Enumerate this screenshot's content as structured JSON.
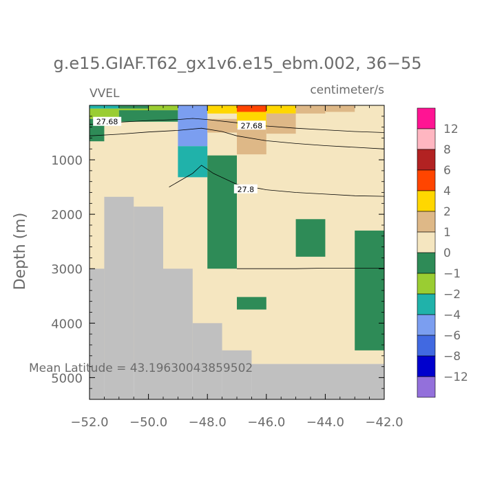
{
  "chart_data": {
    "type": "heatmap",
    "title": "g.e15.GIAF.T62_gx1v6.e15_ebm.002, 36−55",
    "variable_label": "VVEL",
    "units_label": "centimeter/s",
    "ylabel": "Depth (m)",
    "xlabel": "",
    "xlim": [
      -52.0,
      -42.0
    ],
    "ylim": [
      5400,
      0
    ],
    "x_ticks": [
      -52,
      -50,
      -48,
      -46,
      -44,
      -42
    ],
    "x_tick_labels": [
      "−52.0",
      "−50.0",
      "−48.0",
      "−46.0",
      "−44.0",
      "−42.0"
    ],
    "y_ticks": [
      1000,
      2000,
      3000,
      4000,
      5000
    ],
    "y_tick_labels": [
      "1000",
      "2000",
      "3000",
      "4000",
      "5000"
    ],
    "annotation": "Mean Latitude = 43.19630043859502",
    "colorbar": {
      "levels": [
        "12",
        "8",
        "6",
        "4",
        "2",
        "1",
        "0",
        "−1",
        "−2",
        "−4",
        "−6",
        "−8",
        "−12"
      ],
      "colors": [
        "#ff1493",
        "#ffb6c1",
        "#b22222",
        "#ff4500",
        "#ffd700",
        "#deb887",
        "#f5e6c0",
        "#2e8b57",
        "#9acd32",
        "#20b2aa",
        "#7b9ef0",
        "#4169e1",
        "#0000cd",
        "#9370db"
      ]
    },
    "cells": [
      {
        "x0": -52,
        "x1": -42,
        "d0": 0,
        "d1": 4750,
        "c": "#f5e6c0"
      },
      {
        "x0": -52,
        "x1": -51,
        "d0": 0,
        "d1": 60,
        "c": "#20b2aa"
      },
      {
        "x0": -51,
        "x1": -50,
        "d0": 0,
        "d1": 60,
        "c": "#2e8b57"
      },
      {
        "x0": -52,
        "x1": -51,
        "d0": 60,
        "d1": 250,
        "c": "#9acd32"
      },
      {
        "x0": -51,
        "x1": -50,
        "d0": 60,
        "d1": 120,
        "c": "#9acd32"
      },
      {
        "x0": -50,
        "x1": -49,
        "d0": 0,
        "d1": 90,
        "c": "#9acd32"
      },
      {
        "x0": -52,
        "x1": -51.5,
        "d0": 250,
        "d1": 660,
        "c": "#2e8b57"
      },
      {
        "x0": -51.5,
        "x1": -51,
        "d0": 250,
        "d1": 350,
        "c": "#2e8b57"
      },
      {
        "x0": -51,
        "x1": -49,
        "d0": 90,
        "d1": 300,
        "c": "#2e8b57"
      },
      {
        "x0": -49,
        "x1": -48,
        "d0": 0,
        "d1": 750,
        "c": "#7b9ef0"
      },
      {
        "x0": -49,
        "x1": -48,
        "d0": 750,
        "d1": 1320,
        "c": "#20b2aa"
      },
      {
        "x0": -48,
        "x1": -47,
        "d0": 0,
        "d1": 150,
        "c": "#ffd700"
      },
      {
        "x0": -47,
        "x1": -46,
        "d0": 0,
        "d1": 120,
        "c": "#ff4500"
      },
      {
        "x0": -46,
        "x1": -45,
        "d0": 0,
        "d1": 150,
        "c": "#ffd700"
      },
      {
        "x0": -47,
        "x1": -46,
        "d0": 120,
        "d1": 420,
        "c": "#ffd700"
      },
      {
        "x0": -48,
        "x1": -47,
        "d0": 250,
        "d1": 500,
        "c": "#deb887"
      },
      {
        "x0": -47,
        "x1": -46,
        "d0": 420,
        "d1": 900,
        "c": "#deb887"
      },
      {
        "x0": -46,
        "x1": -45,
        "d0": 150,
        "d1": 520,
        "c": "#deb887"
      },
      {
        "x0": -45,
        "x1": -44,
        "d0": 0,
        "d1": 150,
        "c": "#deb887"
      },
      {
        "x0": -44,
        "x1": -43,
        "d0": 0,
        "d1": 120,
        "c": "#deb887"
      },
      {
        "x0": -48,
        "x1": -47,
        "d0": 920,
        "d1": 3000,
        "c": "#2e8b57"
      },
      {
        "x0": -45,
        "x1": -44,
        "d0": 2090,
        "d1": 2780,
        "c": "#2e8b57"
      },
      {
        "x0": -47,
        "x1": -46,
        "d0": 3520,
        "d1": 3750,
        "c": "#2e8b57"
      },
      {
        "x0": -43,
        "x1": -42,
        "d0": 2300,
        "d1": 4500,
        "c": "#2e8b57"
      },
      {
        "x0": -52,
        "x1": -51.5,
        "d0": 3000,
        "d1": 5400,
        "c": "#c0c0c0"
      },
      {
        "x0": -51.5,
        "x1": -50.5,
        "d0": 1680,
        "d1": 5400,
        "c": "#c0c0c0"
      },
      {
        "x0": -50.5,
        "x1": -49.5,
        "d0": 1860,
        "d1": 5400,
        "c": "#c0c0c0"
      },
      {
        "x0": -49.5,
        "x1": -48.5,
        "d0": 3000,
        "d1": 5400,
        "c": "#c0c0c0"
      },
      {
        "x0": -48.5,
        "x1": -47.5,
        "d0": 4000,
        "d1": 5400,
        "c": "#c0c0c0"
      },
      {
        "x0": -47.5,
        "x1": -46.5,
        "d0": 4500,
        "d1": 5400,
        "c": "#c0c0c0"
      },
      {
        "x0": -46.5,
        "x1": -42,
        "d0": 4750,
        "d1": 5400,
        "c": "#c0c0c0"
      }
    ],
    "contours": [
      {
        "label": "27.68",
        "label_at": [
          -51.4,
          300
        ],
        "points": [
          [
            -52,
            350
          ],
          [
            -51,
            310
          ],
          [
            -50,
            280
          ],
          [
            -49,
            260
          ],
          [
            -48.5,
            240
          ],
          [
            -48,
            260
          ],
          [
            -47,
            320
          ],
          [
            -46,
            380
          ],
          [
            -45,
            420
          ],
          [
            -44,
            450
          ],
          [
            -43,
            480
          ],
          [
            -42,
            500
          ]
        ]
      },
      {
        "label": "27.68",
        "label_at": [
          -46.5,
          370
        ],
        "points": [
          [
            -52,
            560
          ],
          [
            -51,
            530
          ],
          [
            -50,
            490
          ],
          [
            -49,
            460
          ],
          [
            -48.2,
            420
          ],
          [
            -47.5,
            480
          ],
          [
            -47,
            560
          ],
          [
            -46,
            650
          ],
          [
            -45,
            700
          ],
          [
            -44,
            740
          ],
          [
            -43,
            770
          ],
          [
            -42,
            800
          ]
        ]
      },
      {
        "label": "27.8",
        "label_at": [
          -46.7,
          1540
        ],
        "points": [
          [
            -49.3,
            1500
          ],
          [
            -48.5,
            1250
          ],
          [
            -48.2,
            1100
          ],
          [
            -47.8,
            1250
          ],
          [
            -47,
            1450
          ],
          [
            -46,
            1550
          ],
          [
            -45,
            1600
          ],
          [
            -44,
            1630
          ],
          [
            -43,
            1660
          ],
          [
            -42,
            1670
          ]
        ]
      },
      {
        "label": "",
        "label_at": null,
        "points": [
          [
            -47,
            3000
          ],
          [
            -45,
            3000
          ],
          [
            -44,
            2990
          ],
          [
            -42,
            2990
          ]
        ]
      }
    ]
  }
}
